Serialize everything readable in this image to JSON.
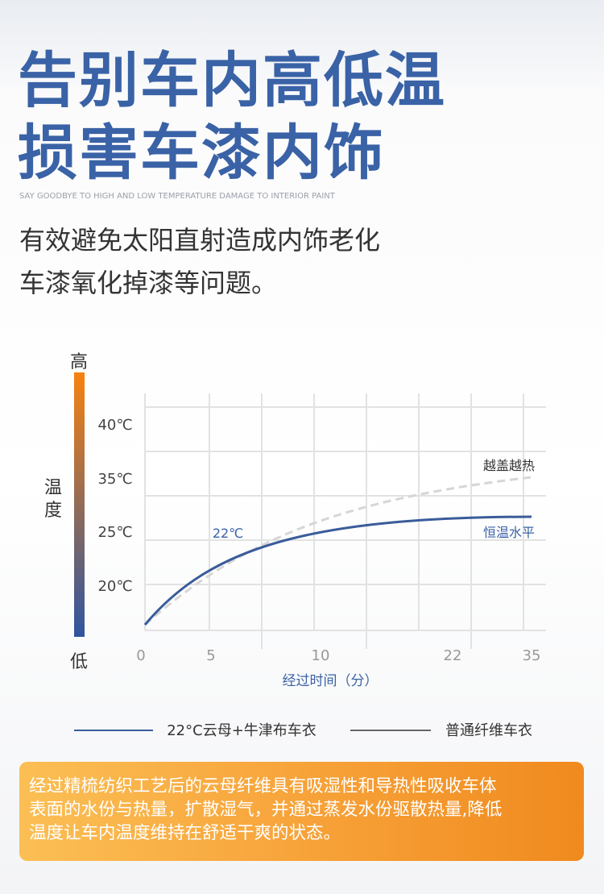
{
  "header": {
    "title_lines": [
      "告别车内高低温",
      "损害车漆内饰"
    ],
    "subtitle": "SAY GOODBYE TO HIGH AND LOW TEMPERATURE DAMAGE TO INTERIOR PAINT",
    "intro_lines": [
      "有效避免太阳直射造成内饰老化",
      "车漆氧化掉漆等问题。"
    ]
  },
  "chart": {
    "scale_high": "高",
    "scale_low": "低",
    "y_title": [
      "温",
      "度"
    ],
    "y_labels": [
      "40℃",
      "35℃",
      "25℃",
      "20℃"
    ],
    "x_labels": [
      "0",
      "5",
      "10",
      "22",
      "35"
    ],
    "x_title": "经过时间（分）",
    "annotations": {
      "dashed": "越盖越热",
      "start": "22℃",
      "solid": "恒温水平"
    },
    "legend": [
      "22°C云母+牛津布车衣",
      "普通纤维车衣"
    ]
  },
  "note": {
    "lines": [
      "经过精梳纺织工艺后的云母纤维具有吸湿性和导热性吸收车体",
      "表面的水份与热量，扩散湿气，并通过蒸发水份驱散热量,降低",
      "温度让车内温度维持在舒适干爽的状态。"
    ]
  }
}
